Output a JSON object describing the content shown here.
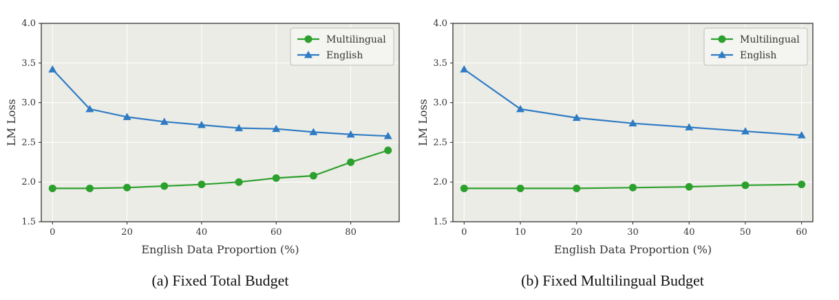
{
  "colors": {
    "multilingual": "#2ca02c",
    "english": "#2e7bc4",
    "plot_bg": "#ecece6",
    "grid": "#ffffff"
  },
  "chart_data": [
    {
      "type": "line",
      "caption": "(a) Fixed Total Budget",
      "xlabel": "English Data Proportion (%)",
      "ylabel": "LM Loss",
      "xlim": [
        -3,
        93
      ],
      "ylim": [
        1.5,
        4.0
      ],
      "xticks": [
        0,
        20,
        40,
        60,
        80
      ],
      "yticks": [
        1.5,
        2.0,
        2.5,
        3.0,
        3.5,
        4.0
      ],
      "ytick_labels": [
        "1.5",
        "2.0",
        "2.5",
        "3.0",
        "3.5",
        "4.0"
      ],
      "grid": true,
      "legend": "top-right",
      "x": [
        0,
        10,
        20,
        30,
        40,
        50,
        60,
        70,
        80,
        90
      ],
      "series": [
        {
          "name": "Multilingual",
          "marker": "circle",
          "values": [
            1.92,
            1.92,
            1.93,
            1.95,
            1.97,
            2.0,
            2.05,
            2.08,
            2.25,
            2.4
          ]
        },
        {
          "name": "English",
          "marker": "triangle",
          "values": [
            3.42,
            2.92,
            2.82,
            2.76,
            2.72,
            2.68,
            2.67,
            2.63,
            2.6,
            2.58
          ]
        }
      ]
    },
    {
      "type": "line",
      "caption": "(b) Fixed Multilingual Budget",
      "xlabel": "English Data Proportion (%)",
      "ylabel": "LM Loss",
      "xlim": [
        -2,
        62
      ],
      "ylim": [
        1.5,
        4.0
      ],
      "xticks": [
        0,
        10,
        20,
        30,
        40,
        50,
        60
      ],
      "yticks": [
        1.5,
        2.0,
        2.5,
        3.0,
        3.5,
        4.0
      ],
      "ytick_labels": [
        "1.5",
        "2.0",
        "2.5",
        "3.0",
        "3.5",
        "4.0"
      ],
      "grid": true,
      "legend": "top-right",
      "x": [
        0,
        10,
        20,
        30,
        40,
        50,
        60
      ],
      "series": [
        {
          "name": "Multilingual",
          "marker": "circle",
          "values": [
            1.92,
            1.92,
            1.92,
            1.93,
            1.94,
            1.96,
            1.97
          ]
        },
        {
          "name": "English",
          "marker": "triangle",
          "values": [
            3.42,
            2.92,
            2.81,
            2.74,
            2.69,
            2.64,
            2.59
          ]
        }
      ]
    }
  ]
}
